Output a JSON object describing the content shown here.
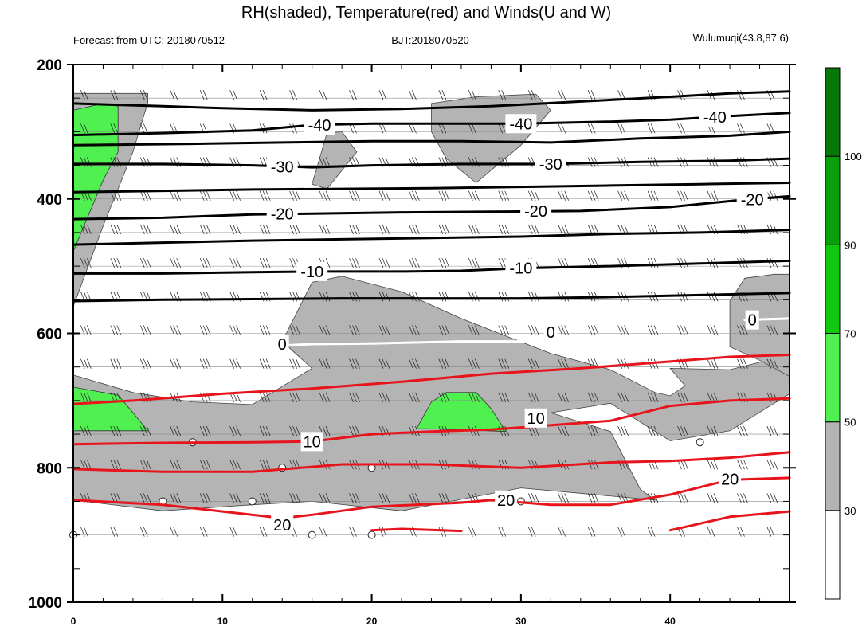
{
  "chart_data": {
    "type": "contour",
    "title": "RH(shaded), Temperature(red) and Winds(U and W)",
    "subtitle_left": "Forecast from UTC: 2018070512",
    "subtitle_center": "BJT:2018070520",
    "subtitle_right": "Wulumuqi(43.8,87.6)",
    "x_ticks": [
      0,
      10,
      20,
      30,
      40
    ],
    "x_range": [
      0,
      48
    ],
    "y_ticks": [
      200,
      400,
      600,
      800,
      1000
    ],
    "y_range": [
      200,
      1000
    ],
    "y_minor": [
      250,
      300,
      350,
      450,
      500,
      550,
      650,
      700,
      750,
      850,
      900,
      950
    ],
    "colorbar": {
      "labels": [
        "30",
        "50",
        "70",
        "90",
        "100"
      ],
      "colors": [
        "#ffffff",
        "#b4b4b4",
        "#50f050",
        "#10c810",
        "#0aa00a",
        "#087808"
      ]
    },
    "contour_labels": [
      {
        "text": "-40",
        "x": 16.5,
        "y": 290
      },
      {
        "text": "-40",
        "x": 30.0,
        "y": 288
      },
      {
        "text": "-40",
        "x": 43.0,
        "y": 278
      },
      {
        "text": "-30",
        "x": 14.0,
        "y": 352
      },
      {
        "text": "-30",
        "x": 32.0,
        "y": 348
      },
      {
        "text": "-20",
        "x": 14.0,
        "y": 422
      },
      {
        "text": "-20",
        "x": 31.0,
        "y": 418
      },
      {
        "text": "-20",
        "x": 45.5,
        "y": 401
      },
      {
        "text": "-10",
        "x": 16.0,
        "y": 508
      },
      {
        "text": "-10",
        "x": 30.0,
        "y": 503
      },
      {
        "text": "0",
        "x": 14.0,
        "y": 616
      },
      {
        "text": "0",
        "x": 32.0,
        "y": 598
      },
      {
        "text": "0",
        "x": 45.5,
        "y": 580
      },
      {
        "text": "10",
        "x": 16.0,
        "y": 761
      },
      {
        "text": "10",
        "x": 31.0,
        "y": 726
      },
      {
        "text": "20",
        "x": 14.0,
        "y": 885
      },
      {
        "text": "20",
        "x": 29.0,
        "y": 848
      },
      {
        "text": "20",
        "x": 44.0,
        "y": 817
      }
    ],
    "temperature_isotherms": [
      {
        "level": -40,
        "color": "black",
        "points": [
          [
            0,
            258
          ],
          [
            6,
            262
          ],
          [
            10,
            265
          ],
          [
            16,
            268
          ],
          [
            22,
            266
          ],
          [
            28,
            262
          ],
          [
            34,
            255
          ],
          [
            40,
            248
          ],
          [
            44,
            243
          ],
          [
            48,
            240
          ]
        ]
      },
      {
        "level": -40,
        "color": "black",
        "points": [
          [
            0,
            305
          ],
          [
            6,
            302
          ],
          [
            12,
            298
          ],
          [
            16,
            290
          ],
          [
            20,
            288
          ],
          [
            26,
            288
          ],
          [
            30,
            288
          ],
          [
            36,
            285
          ],
          [
            40,
            282
          ],
          [
            43,
            278
          ],
          [
            48,
            272
          ]
        ]
      },
      {
        "level": -35,
        "color": "black",
        "points": [
          [
            0,
            320
          ],
          [
            8,
            318
          ],
          [
            14,
            316
          ],
          [
            20,
            314
          ],
          [
            26,
            314
          ],
          [
            32,
            316
          ],
          [
            38,
            310
          ],
          [
            44,
            306
          ],
          [
            48,
            300
          ]
        ]
      },
      {
        "level": -30,
        "color": "black",
        "points": [
          [
            0,
            348
          ],
          [
            6,
            348
          ],
          [
            12,
            350
          ],
          [
            16,
            353
          ],
          [
            20,
            350
          ],
          [
            26,
            348
          ],
          [
            32,
            348
          ],
          [
            38,
            345
          ],
          [
            44,
            343
          ],
          [
            48,
            340
          ]
        ]
      },
      {
        "level": -25,
        "color": "black",
        "points": [
          [
            0,
            390
          ],
          [
            6,
            388
          ],
          [
            12,
            386
          ],
          [
            18,
            385
          ],
          [
            24,
            384
          ],
          [
            30,
            382
          ],
          [
            36,
            380
          ],
          [
            42,
            378
          ],
          [
            48,
            376
          ]
        ]
      },
      {
        "level": -20,
        "color": "black",
        "points": [
          [
            0,
            430
          ],
          [
            6,
            428
          ],
          [
            12,
            423
          ],
          [
            16,
            422
          ],
          [
            22,
            420
          ],
          [
            28,
            419
          ],
          [
            34,
            418
          ],
          [
            40,
            412
          ],
          [
            45,
            401
          ],
          [
            48,
            396
          ]
        ]
      },
      {
        "level": -15,
        "color": "black",
        "points": [
          [
            0,
            468
          ],
          [
            6,
            465
          ],
          [
            12,
            462
          ],
          [
            18,
            460
          ],
          [
            24,
            458
          ],
          [
            30,
            456
          ],
          [
            36,
            452
          ],
          [
            42,
            450
          ],
          [
            48,
            446
          ]
        ]
      },
      {
        "level": -10,
        "color": "black",
        "points": [
          [
            0,
            511
          ],
          [
            6,
            511
          ],
          [
            12,
            509
          ],
          [
            16,
            508
          ],
          [
            22,
            508
          ],
          [
            26,
            507
          ],
          [
            30,
            503
          ],
          [
            36,
            500
          ],
          [
            42,
            496
          ],
          [
            48,
            492
          ]
        ]
      },
      {
        "level": -5,
        "color": "black",
        "points": [
          [
            0,
            552
          ],
          [
            6,
            550
          ],
          [
            12,
            549
          ],
          [
            18,
            548
          ],
          [
            24,
            548
          ],
          [
            30,
            548
          ],
          [
            36,
            546
          ],
          [
            42,
            543
          ],
          [
            48,
            540
          ]
        ]
      },
      {
        "level": 0,
        "color": "white",
        "points": [
          [
            14,
            618
          ],
          [
            16,
            616
          ],
          [
            20,
            615
          ],
          [
            26,
            612
          ],
          [
            30,
            612
          ],
          [
            32,
            609
          ]
        ]
      },
      {
        "level": 0,
        "color": "white",
        "points": [
          [
            45,
            580
          ],
          [
            48,
            578
          ]
        ]
      },
      {
        "level": 5,
        "color": "red",
        "points": [
          [
            0,
            705
          ],
          [
            4,
            700
          ],
          [
            10,
            690
          ],
          [
            16,
            682
          ],
          [
            22,
            672
          ],
          [
            28,
            660
          ],
          [
            34,
            652
          ],
          [
            40,
            642
          ],
          [
            44,
            635
          ],
          [
            48,
            632
          ]
        ]
      },
      {
        "level": 10,
        "color": "red",
        "points": [
          [
            0,
            765
          ],
          [
            6,
            763
          ],
          [
            12,
            762
          ],
          [
            16,
            761
          ],
          [
            20,
            750
          ],
          [
            24,
            746
          ],
          [
            28,
            743
          ],
          [
            30,
            740
          ],
          [
            36,
            730
          ],
          [
            40,
            708
          ],
          [
            44,
            700
          ],
          [
            48,
            697
          ]
        ]
      },
      {
        "level": 15,
        "color": "red",
        "points": [
          [
            0,
            802
          ],
          [
            6,
            806
          ],
          [
            12,
            806
          ],
          [
            18,
            795
          ],
          [
            24,
            795
          ],
          [
            30,
            800
          ],
          [
            36,
            792
          ],
          [
            40,
            790
          ],
          [
            44,
            785
          ],
          [
            48,
            777
          ]
        ]
      },
      {
        "level": 20,
        "color": "red",
        "points": [
          [
            0,
            848
          ],
          [
            6,
            855
          ],
          [
            10,
            865
          ],
          [
            14,
            875
          ],
          [
            16,
            870
          ],
          [
            20,
            858
          ],
          [
            26,
            852
          ],
          [
            28,
            848
          ],
          [
            32,
            855
          ],
          [
            36,
            855
          ],
          [
            40,
            840
          ],
          [
            44,
            818
          ],
          [
            48,
            815
          ]
        ]
      },
      {
        "level": 25,
        "color": "red",
        "points": [
          [
            20,
            893
          ],
          [
            22,
            891
          ],
          [
            26,
            894
          ]
        ]
      },
      {
        "level": 25,
        "color": "red",
        "points": [
          [
            40,
            893
          ],
          [
            42,
            883
          ],
          [
            44,
            873
          ],
          [
            48,
            865
          ]
        ]
      }
    ],
    "rh_gray_regions": [
      [
        [
          0,
          243
        ],
        [
          5,
          243
        ],
        [
          5,
          256
        ],
        [
          4,
          330
        ],
        [
          2,
          440
        ],
        [
          0,
          560
        ]
      ],
      [
        [
          17,
          302
        ],
        [
          18,
          300
        ],
        [
          19,
          330
        ],
        [
          17,
          385
        ],
        [
          16,
          378
        ]
      ],
      [
        [
          24,
          258
        ],
        [
          27,
          248
        ],
        [
          31,
          244
        ],
        [
          32,
          268
        ],
        [
          30,
          320
        ],
        [
          27,
          376
        ],
        [
          25,
          340
        ],
        [
          24,
          300
        ]
      ],
      [
        [
          0,
          662
        ],
        [
          4,
          688
        ],
        [
          8,
          702
        ],
        [
          12,
          706
        ],
        [
          16,
          652
        ],
        [
          14,
          612
        ],
        [
          16,
          524
        ],
        [
          18,
          515
        ],
        [
          22,
          538
        ],
        [
          26,
          578
        ],
        [
          32,
          630
        ],
        [
          36,
          654
        ],
        [
          39,
          688
        ],
        [
          40,
          693
        ],
        [
          41,
          678
        ],
        [
          40,
          652
        ],
        [
          44,
          654
        ],
        [
          48,
          632
        ],
        [
          48,
          690
        ],
        [
          44,
          745
        ],
        [
          40,
          760
        ],
        [
          36,
          704
        ],
        [
          32,
          718
        ],
        [
          36,
          746
        ],
        [
          38,
          832
        ],
        [
          39,
          848
        ],
        [
          30,
          830
        ],
        [
          22,
          864
        ],
        [
          16,
          850
        ],
        [
          12,
          855
        ],
        [
          6,
          864
        ],
        [
          0,
          848
        ]
      ],
      [
        [
          44,
          552
        ],
        [
          45,
          518
        ],
        [
          47,
          512
        ],
        [
          48,
          512
        ],
        [
          48,
          664
        ],
        [
          46,
          640
        ],
        [
          44,
          620
        ]
      ]
    ],
    "rh_green_regions": [
      [
        [
          0,
          268
        ],
        [
          2,
          258
        ],
        [
          3,
          262
        ],
        [
          3,
          330
        ],
        [
          2,
          372
        ],
        [
          0,
          478
        ]
      ],
      [
        [
          0,
          680
        ],
        [
          3,
          692
        ],
        [
          4,
          718
        ],
        [
          5,
          745
        ],
        [
          0,
          745
        ]
      ],
      [
        [
          23,
          742
        ],
        [
          24,
          702
        ],
        [
          25,
          688
        ],
        [
          27,
          688
        ],
        [
          28,
          712
        ],
        [
          29,
          746
        ],
        [
          24,
          742
        ]
      ]
    ],
    "wind_barb_levels": [
      250,
      300,
      350,
      400,
      450,
      500,
      550,
      600,
      650,
      700,
      750,
      800,
      850,
      900
    ],
    "calm_circles": [
      [
        0,
        900
      ],
      [
        8,
        762
      ],
      [
        14,
        800
      ],
      [
        20,
        800
      ],
      [
        16,
        900
      ],
      [
        20,
        900
      ],
      [
        6,
        850
      ],
      [
        12,
        850
      ],
      [
        42,
        762
      ],
      [
        30,
        850
      ]
    ]
  }
}
